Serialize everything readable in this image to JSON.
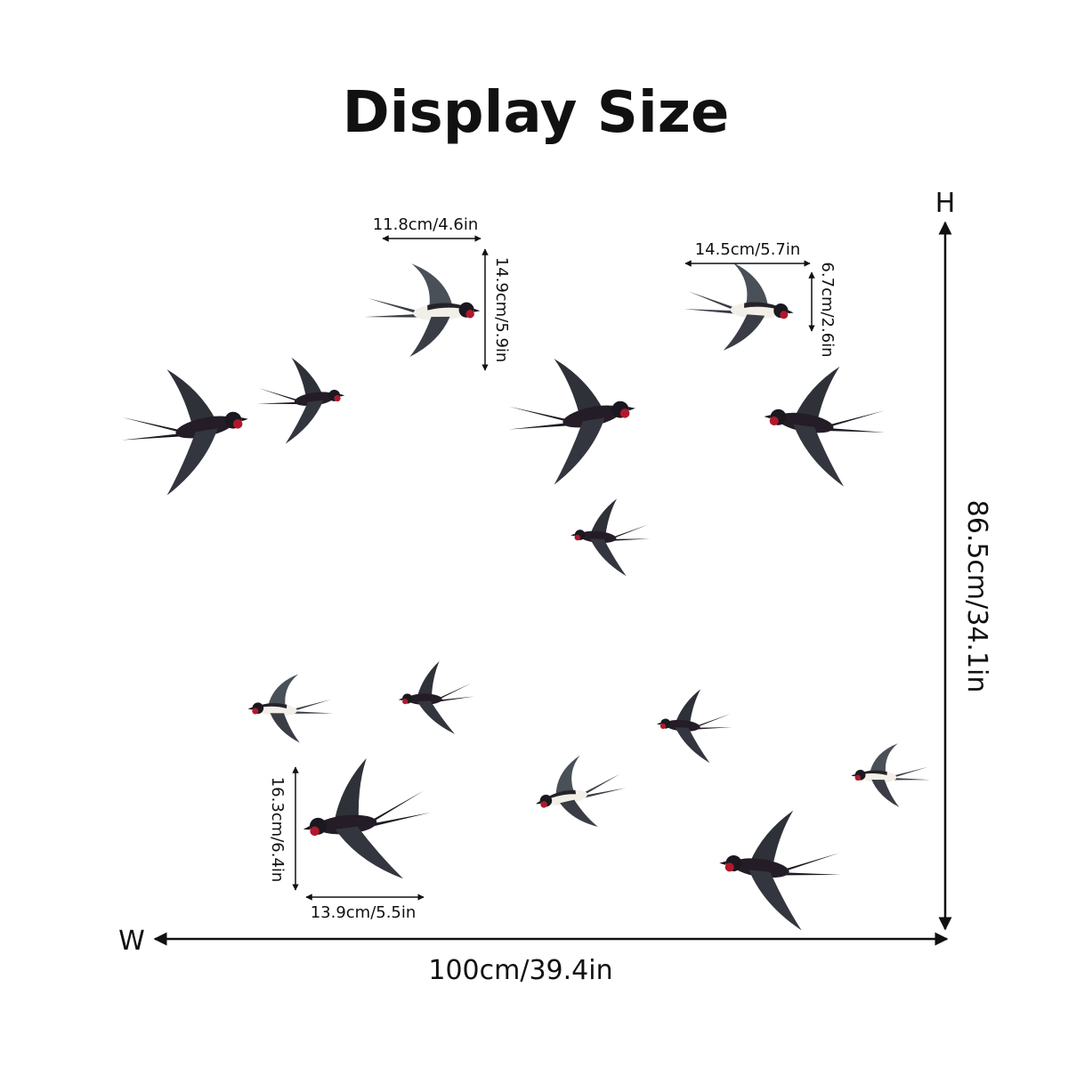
{
  "title": "Display Size",
  "height_label": "H",
  "width_label": "W",
  "total_height": "86.5cm/34.1in",
  "total_width": "100cm/39.4in",
  "bird_dimensions": [
    {
      "width": "11.8cm/4.6in",
      "height": "14.9cm/5.9in"
    },
    {
      "width": "14.5cm/5.7in",
      "height": "6.7cm/2.6in"
    },
    {
      "width": "13.9cm/5.5in",
      "height": "16.3cm/6.4in"
    }
  ]
}
